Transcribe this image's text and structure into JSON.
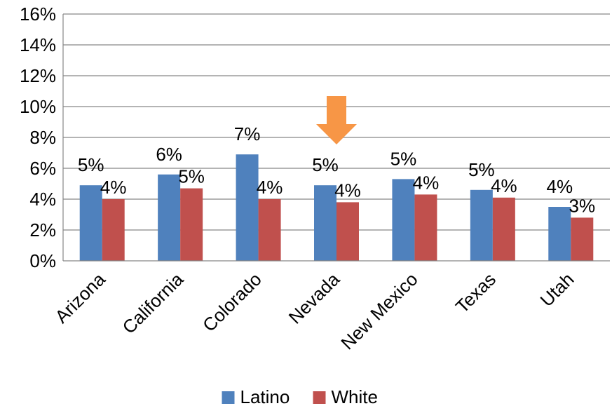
{
  "chart_data": {
    "type": "bar",
    "title": "",
    "xlabel": "",
    "ylabel": "",
    "ylim": [
      0,
      16
    ],
    "yticks": [
      "0%",
      "2%",
      "4%",
      "6%",
      "8%",
      "10%",
      "12%",
      "14%",
      "16%"
    ],
    "ytick_values": [
      0,
      2,
      4,
      6,
      8,
      10,
      12,
      14,
      16
    ],
    "grid": true,
    "legend_position": "bottom",
    "categories": [
      "Arizona",
      "California",
      "Colorado",
      "Nevada",
      "New Mexico",
      "Texas",
      "Utah"
    ],
    "series": [
      {
        "name": "Latino",
        "color": "#4f81bd",
        "values": [
          4.9,
          5.6,
          6.9,
          4.9,
          5.3,
          4.6,
          3.5
        ],
        "labels": [
          "5%",
          "6%",
          "7%",
          "5%",
          "5%",
          "5%",
          "4%"
        ]
      },
      {
        "name": "White",
        "color": "#c0504d",
        "values": [
          4.0,
          4.7,
          4.0,
          3.8,
          4.3,
          4.1,
          2.8
        ],
        "labels": [
          "4%",
          "5%",
          "4%",
          "4%",
          "4%",
          "4%",
          "3%"
        ]
      }
    ],
    "annotation": {
      "type": "arrow-down",
      "category": "Nevada",
      "color": "#f79646"
    }
  }
}
